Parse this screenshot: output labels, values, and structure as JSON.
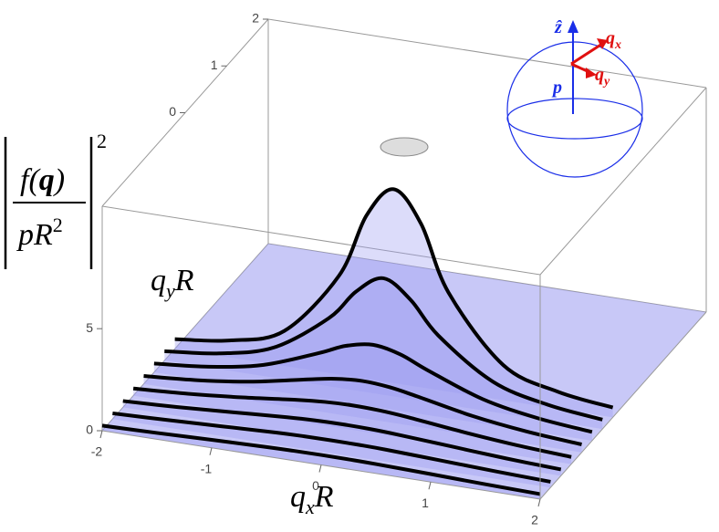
{
  "chart_data": {
    "type": "surface3d",
    "x": [
      -2,
      -1.5,
      -1,
      -0.5,
      -0.25,
      0,
      0.25,
      0.5,
      1,
      1.5,
      2
    ],
    "slices": [
      {
        "qy": -2,
        "values": [
          0.25,
          0.31,
          0.39,
          0.46,
          0.48,
          0.49,
          0.48,
          0.46,
          0.39,
          0.31,
          0.25
        ]
      },
      {
        "qy": -1.75,
        "values": [
          0.28,
          0.37,
          0.48,
          0.59,
          0.62,
          0.63,
          0.62,
          0.59,
          0.48,
          0.37,
          0.28
        ]
      },
      {
        "qy": -1.5,
        "values": [
          0.31,
          0.43,
          0.6,
          0.77,
          0.83,
          0.85,
          0.83,
          0.77,
          0.6,
          0.43,
          0.31
        ]
      },
      {
        "qy": -1.25,
        "values": [
          0.35,
          0.51,
          0.75,
          1.05,
          1.16,
          1.2,
          1.16,
          1.05,
          0.75,
          0.51,
          0.35
        ]
      },
      {
        "qy": -1,
        "values": [
          0.39,
          0.6,
          0.95,
          1.48,
          1.72,
          1.82,
          1.72,
          1.48,
          0.95,
          0.6,
          0.39
        ]
      },
      {
        "qy": -0.75,
        "values": [
          0.43,
          0.69,
          1.2,
          2.19,
          2.76,
          3.02,
          2.76,
          2.19,
          1.2,
          0.69,
          0.43
        ]
      },
      {
        "qy": -0.5,
        "values": [
          0.46,
          0.77,
          1.48,
          3.33,
          4.85,
          5.71,
          4.85,
          3.33,
          1.48,
          0.77,
          0.46
        ]
      },
      {
        "qy": -0.25,
        "values": [
          0.48,
          0.83,
          1.72,
          4.85,
          8,
          9.5,
          8,
          4.85,
          1.72,
          0.83,
          0.48
        ]
      }
    ],
    "xlim": [
      -2,
      2
    ],
    "ylim": [
      -2,
      2
    ],
    "zlim": [
      0,
      11
    ],
    "xticks": [
      -2,
      -1,
      0,
      1,
      2
    ],
    "yticks": [
      0,
      1,
      2
    ],
    "zticks": [
      0,
      5
    ],
    "surface_color": "#9a9af0",
    "curve_color": "#000000",
    "xlabel": {
      "main": "q",
      "sub": "x",
      "tail": "R"
    },
    "ylabel": {
      "main": "q",
      "sub": "y",
      "tail": "R"
    },
    "zlabel": {
      "num_a": "f(",
      "num_b": "q",
      "num_c": ")",
      "den": "pR",
      "den_sup": "2",
      "sup": "2"
    },
    "inset": {
      "z": "ẑ",
      "qx": "q",
      "qx_sub": "x",
      "qy": "q",
      "qy_sub": "y",
      "p": "p"
    }
  }
}
